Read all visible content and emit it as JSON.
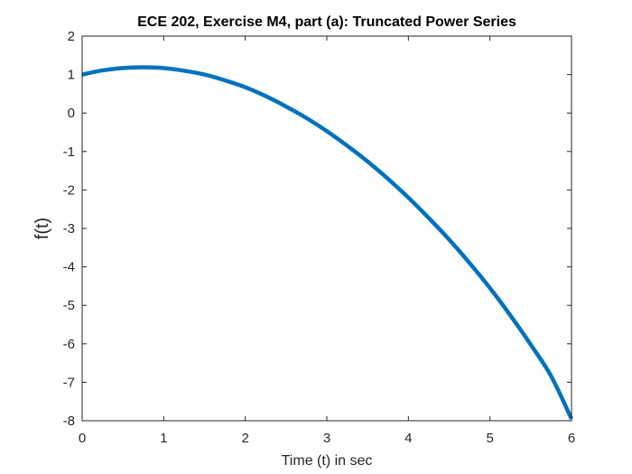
{
  "chart_data": {
    "type": "line",
    "title": "ECE 202, Exercise M4, part (a): Truncated Power Series",
    "xlabel": "Time (t) in sec",
    "ylabel": "f(t)",
    "xlim": [
      0,
      6
    ],
    "ylim": [
      -8,
      2
    ],
    "xticks": [
      0,
      1,
      2,
      3,
      4,
      5,
      6
    ],
    "yticks": [
      2,
      1,
      0,
      -1,
      -2,
      -3,
      -4,
      -5,
      -6,
      -7,
      -8
    ],
    "xtick_labels": [
      "0",
      "1",
      "2",
      "3",
      "4",
      "5",
      "6"
    ],
    "ytick_labels": [
      "2",
      "1",
      "0",
      "-1",
      "-2",
      "-3",
      "-4",
      "-5",
      "-6",
      "-7",
      "-8"
    ],
    "grid": false,
    "line_color": "#0072BD",
    "axis_color": "#262626",
    "series": [
      {
        "x": [
          0,
          0.25,
          0.5,
          0.75,
          1,
          1.25,
          1.5,
          1.75,
          2,
          2.25,
          2.5,
          2.75,
          3,
          3.25,
          3.5,
          3.75,
          4,
          4.25,
          4.5,
          4.75,
          5,
          5.25,
          5.5,
          5.75,
          6
        ],
        "y": [
          1.0,
          1.11,
          1.17,
          1.19,
          1.17,
          1.1,
          1.0,
          0.85,
          0.67,
          0.44,
          0.17,
          -0.13,
          -0.47,
          -0.85,
          -1.26,
          -1.71,
          -2.2,
          -2.73,
          -3.29,
          -3.9,
          -4.55,
          -5.26,
          -6.02,
          -6.84,
          -7.95
        ]
      }
    ]
  }
}
